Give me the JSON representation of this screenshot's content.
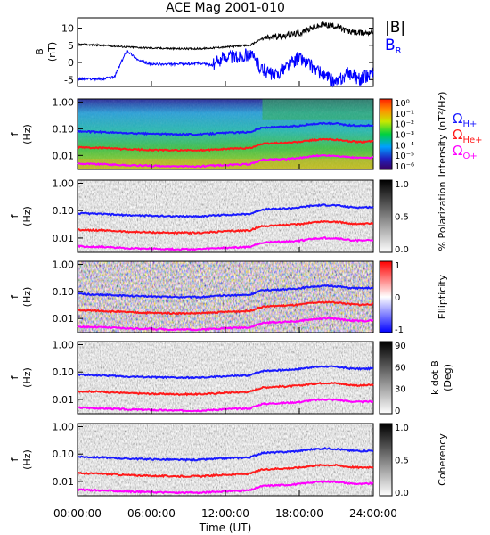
{
  "title": "ACE Mag 2001-010",
  "x_axis": {
    "label": "Time (UT)",
    "ticks": [
      "00:00:00",
      "06:00:00",
      "12:00:00",
      "18:00:00",
      "24:00:00"
    ]
  },
  "gyro_labels": [
    {
      "base": "Ω",
      "sub": "H+",
      "color": "#1a1aff"
    },
    {
      "base": "Ω",
      "sub": "He+",
      "color": "#ff1a1a"
    },
    {
      "base": "Ω",
      "sub": "O+",
      "color": "#ff00ff"
    }
  ],
  "chart_data": [
    {
      "type": "line",
      "panel": "B field",
      "ylabel_line1": "B",
      "ylabel_line2": "(nT)",
      "ylim": [
        -7,
        13
      ],
      "yticks": [
        "10",
        "5",
        "0",
        "-5"
      ],
      "x_range_hours": [
        0,
        24
      ],
      "series": [
        {
          "name": "|B|",
          "color": "#000000",
          "x": [
            0,
            2,
            4,
            6,
            8,
            10,
            12,
            14,
            15,
            16,
            17,
            18,
            19,
            20,
            21,
            22,
            23,
            24
          ],
          "y": [
            5.3,
            5.0,
            4.5,
            4.2,
            4.0,
            4.0,
            4.5,
            5.0,
            7.0,
            7.5,
            8.0,
            8.5,
            10.0,
            11.0,
            10.5,
            9.0,
            8.5,
            9.0
          ]
        },
        {
          "name": "B_R",
          "color": "#0000ff",
          "x": [
            0,
            2,
            3,
            4,
            5,
            6,
            8,
            10,
            11,
            12,
            13,
            14,
            15,
            16,
            17,
            18,
            19,
            20,
            21,
            22,
            23,
            24
          ],
          "y": [
            -4.8,
            -4.8,
            -4.2,
            3.5,
            0.5,
            -0.5,
            -0.5,
            -0.2,
            -0.8,
            2.0,
            1.5,
            2.5,
            -2.0,
            -4.0,
            -1.0,
            1.5,
            -1.0,
            -4.0,
            -6.0,
            -3.0,
            -5.0,
            -2.5
          ]
        }
      ],
      "legend_entries": [
        "|B|",
        "B_R"
      ]
    },
    {
      "type": "heatmap",
      "panel": "Intensity",
      "ylabel_line1": "f",
      "ylabel_line2": "(Hz)",
      "yticks": [
        "1.00",
        "0.10",
        "0.01"
      ],
      "ylim_hz": [
        0.003,
        1.3
      ],
      "yscale": "log",
      "colorbar_label": "Intensity (nT²/Hz)",
      "colorbar_ticks": [
        "10⁰",
        "10⁻¹",
        "10⁻²",
        "10⁻³",
        "10⁻⁴",
        "10⁻⁵",
        "10⁻⁶"
      ],
      "colormap": "rainbow",
      "gyro_lines": true
    },
    {
      "type": "heatmap",
      "panel": "% Polarization",
      "ylabel_line1": "f",
      "ylabel_line2": "(Hz)",
      "yticks": [
        "1.00",
        "0.10",
        "0.01"
      ],
      "colorbar_label": "% Polarization",
      "colorbar_ticks": [
        "1.0",
        "0.5",
        "0.0"
      ],
      "colormap": "grayscale",
      "gyro_lines": true
    },
    {
      "type": "heatmap",
      "panel": "Ellipticity",
      "ylabel_line1": "f",
      "ylabel_line2": "(Hz)",
      "yticks": [
        "1.00",
        "0.10",
        "0.01"
      ],
      "colorbar_label": "Ellipticity",
      "colorbar_ticks": [
        "1",
        "0",
        "-1"
      ],
      "colormap": "blue-white-red",
      "gyro_lines": true
    },
    {
      "type": "heatmap",
      "panel": "k dot B",
      "ylabel_line1": "f",
      "ylabel_line2": "(Hz)",
      "yticks": [
        "1.00",
        "0.10",
        "0.01"
      ],
      "colorbar_label_line1": "k dot B",
      "colorbar_label_line2": "(Deg)",
      "colorbar_ticks": [
        "90",
        "60",
        "30",
        "0"
      ],
      "colormap": "grayscale",
      "gyro_lines": true
    },
    {
      "type": "heatmap",
      "panel": "Coherency",
      "ylabel_line1": "f",
      "ylabel_line2": "(Hz)",
      "yticks": [
        "1.00",
        "0.10",
        "0.01"
      ],
      "colorbar_label": "Coherency",
      "colorbar_ticks": [
        "1.0",
        "0.5",
        "0.0"
      ],
      "colormap": "grayscale",
      "gyro_lines": true
    }
  ],
  "gyro_lines_hz": {
    "x": [
      0,
      2,
      4,
      6,
      8,
      10,
      12,
      14,
      15,
      16,
      17,
      18,
      19,
      20,
      21,
      22,
      23,
      24
    ],
    "H+": [
      0.08,
      0.075,
      0.068,
      0.065,
      0.062,
      0.062,
      0.07,
      0.075,
      0.11,
      0.115,
      0.12,
      0.13,
      0.15,
      0.16,
      0.155,
      0.135,
      0.13,
      0.135
    ],
    "He+": [
      0.02,
      0.019,
      0.017,
      0.016,
      0.0155,
      0.0155,
      0.0175,
      0.019,
      0.027,
      0.029,
      0.03,
      0.032,
      0.037,
      0.04,
      0.039,
      0.034,
      0.032,
      0.034
    ],
    "O+": [
      0.005,
      0.0047,
      0.0043,
      0.0041,
      0.0039,
      0.0039,
      0.0044,
      0.0047,
      0.0068,
      0.0072,
      0.0075,
      0.008,
      0.0093,
      0.01,
      0.0097,
      0.0085,
      0.008,
      0.0085
    ]
  }
}
